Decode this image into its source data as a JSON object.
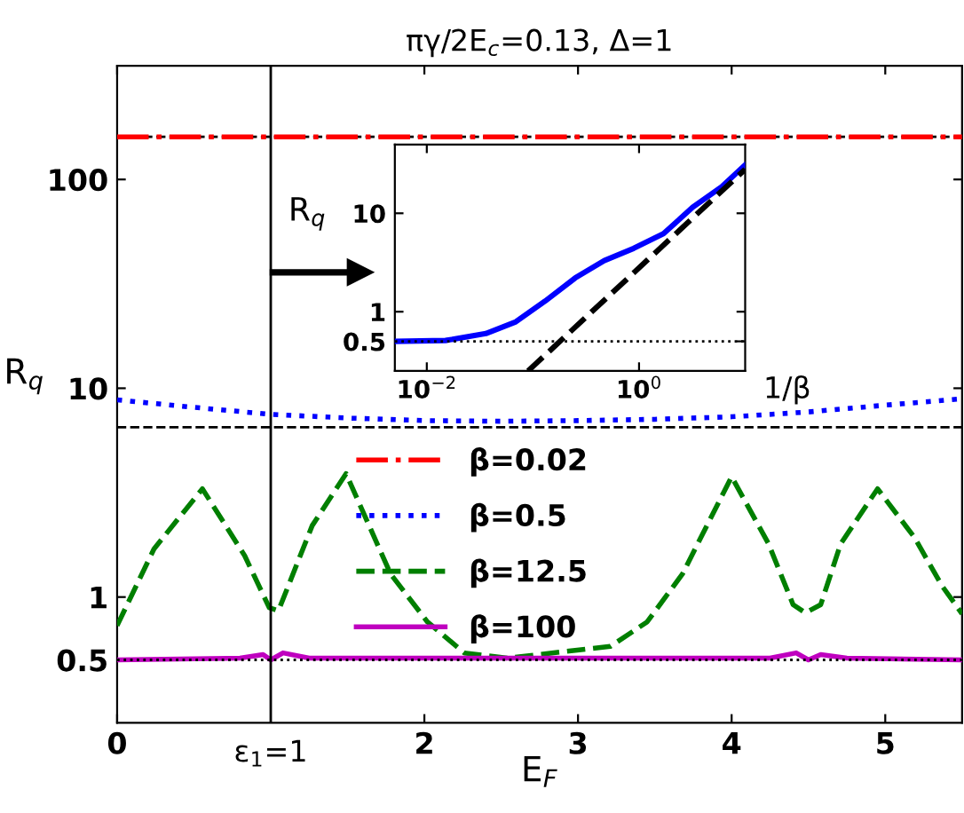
{
  "chart_data": [
    {
      "type": "line",
      "title": "πγ/2E$_{c}$=0.13, Δ=1",
      "xlabel": "E$_{F}$",
      "ylabel": "R$_{q}$",
      "log": "y",
      "xlim": [
        0,
        5.5
      ],
      "xticks": [
        0,
        2,
        3,
        4,
        5
      ],
      "ylim": [
        0.25,
        350
      ],
      "yticks": [
        0.5,
        1,
        10,
        100
      ],
      "grid": false,
      "legend": "center",
      "series": [
        {
          "name": "β=0.02",
          "color": "#ff0000",
          "line_style": "dashdot",
          "x": [
            0,
            1,
            2,
            3,
            4,
            5,
            5.5
          ],
          "values": [
            160,
            160,
            160,
            160,
            160,
            160,
            160
          ]
        },
        {
          "name": "β=0.5",
          "color": "#0000ff",
          "line_style": "dotted",
          "x": [
            0,
            0.5,
            1,
            1.5,
            2,
            2.5,
            3,
            3.5,
            4,
            4.5,
            5,
            5.5
          ],
          "values": [
            8.8,
            8.1,
            7.5,
            7.2,
            7.0,
            6.95,
            7.0,
            7.1,
            7.3,
            7.7,
            8.3,
            8.9
          ]
        },
        {
          "name": "β=12.5",
          "color": "#007f00",
          "line_style": "dashed",
          "x": [
            0,
            0.24,
            0.555,
            0.83,
            0.99,
            1.05,
            1.27,
            1.49,
            1.78,
            2.02,
            2.26,
            2.54,
            3.21,
            3.45,
            3.68,
            4.0,
            4.24,
            4.4,
            4.48,
            4.58,
            4.71,
            4.95,
            5.19,
            5.37,
            5.5
          ],
          "values": [
            0.73,
            1.7,
            3.3,
            1.58,
            0.89,
            0.86,
            2.2,
            3.9,
            1.29,
            0.76,
            0.54,
            0.51,
            0.58,
            0.76,
            1.29,
            3.77,
            1.8,
            0.92,
            0.84,
            0.92,
            1.8,
            3.3,
            1.93,
            1.13,
            0.83
          ]
        },
        {
          "name": "β=100",
          "color": "#bf00bf",
          "line_style": "solid",
          "x": [
            0,
            0.8,
            0.95,
            1.0,
            1.08,
            1.25,
            4.25,
            4.42,
            4.5,
            4.58,
            4.75,
            5.5
          ],
          "values": [
            0.5,
            0.51,
            0.53,
            0.5,
            0.54,
            0.51,
            0.51,
            0.54,
            0.5,
            0.53,
            0.51,
            0.5
          ]
        },
        {
          "color": "#000000",
          "line_style": "dashed",
          "x": [
            0,
            5.5
          ],
          "values": [
            160,
            160
          ]
        },
        {
          "color": "#000000",
          "line_style": "dashed",
          "x": [
            0,
            5.5
          ],
          "values": [
            6.5,
            6.5
          ]
        }
      ],
      "ref_lines": [
        {
          "axis": "y",
          "value": 0.5,
          "color": "#000000",
          "line_style": "dotted"
        },
        {
          "axis": "x",
          "value": 1,
          "color": "#000000",
          "line_style": "solid",
          "label": "ε$_{1}$=1"
        }
      ]
    },
    {
      "type": "line",
      "xlabel": "1/β",
      "ylabel": "R$_{q}$",
      "log": "xy",
      "xlim": [
        0.005,
        10
      ],
      "xticks": [
        {
          "value": 0.01,
          "label": "10$^{−2}$"
        },
        {
          "value": 1,
          "label": "10$^{0}$"
        }
      ],
      "ylim": [
        0.25,
        50
      ],
      "yticks": [
        0.5,
        1,
        10
      ],
      "grid": false,
      "series": [
        {
          "color": "#0000ff",
          "line_style": "solid",
          "x": [
            0.005,
            0.015,
            0.036,
            0.069,
            0.13,
            0.25,
            0.47,
            0.89,
            1.7,
            3.2,
            6,
            10
          ],
          "values": [
            0.5,
            0.51,
            0.6,
            0.79,
            1.28,
            2.2,
            3.3,
            4.4,
            6.2,
            11.5,
            18.6,
            31
          ]
        },
        {
          "color": "#000000",
          "line_style": "dashed",
          "x": [
            0.09,
            10
          ],
          "values": [
            0.25,
            28
          ]
        }
      ],
      "ref_lines": [
        {
          "axis": "y",
          "value": 0.5,
          "color": "#000000",
          "line_style": "dotted"
        }
      ]
    }
  ]
}
